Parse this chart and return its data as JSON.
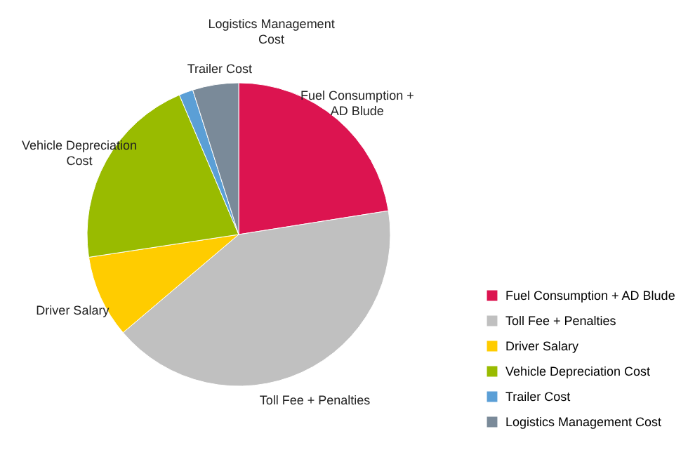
{
  "chart_data": {
    "type": "pie",
    "categories": [
      "Fuel Consumption + AD Blude",
      "Toll Fee + Penalties",
      "Driver Salary",
      "Vehicle Depreciation Cost",
      "Trailer Cost",
      "Logistics Management Cost"
    ],
    "values": [
      22.5,
      41.3,
      8.8,
      21.0,
      1.5,
      4.9
    ],
    "colors": [
      "#dc1450",
      "#c0c0c0",
      "#ffcc00",
      "#99bb00",
      "#5b9fd6",
      "#7a8a99"
    ],
    "legend": "bottom right"
  }
}
